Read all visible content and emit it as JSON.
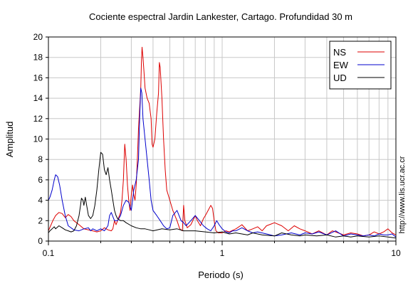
{
  "chart_data": {
    "type": "line",
    "title": "Cociente espectral Jardin Lankester, Cartago. Profundidad 30 m",
    "xlabel": "Periodo (s)",
    "ylabel": "Amplitud",
    "xscale": "log",
    "xlim": [
      0.1,
      10
    ],
    "ylim": [
      0,
      20
    ],
    "xticks": [
      {
        "value": 0.1,
        "label": "0.1"
      },
      {
        "value": 1,
        "label": "1"
      },
      {
        "value": 10,
        "label": "10"
      }
    ],
    "yticks": [
      {
        "value": 0,
        "label": "0"
      },
      {
        "value": 2,
        "label": "2"
      },
      {
        "value": 4,
        "label": "4"
      },
      {
        "value": 6,
        "label": "6"
      },
      {
        "value": 8,
        "label": "8"
      },
      {
        "value": 10,
        "label": "10"
      },
      {
        "value": 12,
        "label": "12"
      },
      {
        "value": 14,
        "label": "14"
      },
      {
        "value": 16,
        "label": "16"
      },
      {
        "value": 18,
        "label": "18"
      },
      {
        "value": 20,
        "label": "20"
      }
    ],
    "grid": true,
    "legend_position": "top-right",
    "watermark": "http://www.lis.ucr.ac.cr",
    "series": [
      {
        "name": "NS",
        "color": "#dd0000",
        "points": [
          [
            0.1,
            1.0
          ],
          [
            0.103,
            1.5
          ],
          [
            0.106,
            2.0
          ],
          [
            0.11,
            2.5
          ],
          [
            0.115,
            2.8
          ],
          [
            0.12,
            2.7
          ],
          [
            0.125,
            2.3
          ],
          [
            0.13,
            2.6
          ],
          [
            0.135,
            2.4
          ],
          [
            0.14,
            2.0
          ],
          [
            0.15,
            1.6
          ],
          [
            0.16,
            1.2
          ],
          [
            0.17,
            1.1
          ],
          [
            0.18,
            1.0
          ],
          [
            0.19,
            0.9
          ],
          [
            0.2,
            1.0
          ],
          [
            0.21,
            1.3
          ],
          [
            0.22,
            1.1
          ],
          [
            0.23,
            1.0
          ],
          [
            0.235,
            1.2
          ],
          [
            0.24,
            2.0
          ],
          [
            0.245,
            1.6
          ],
          [
            0.25,
            2.0
          ],
          [
            0.26,
            2.8
          ],
          [
            0.265,
            4.0
          ],
          [
            0.27,
            6.0
          ],
          [
            0.275,
            9.5
          ],
          [
            0.28,
            8.0
          ],
          [
            0.285,
            5.5
          ],
          [
            0.29,
            4.0
          ],
          [
            0.295,
            3.0
          ],
          [
            0.3,
            4.5
          ],
          [
            0.305,
            5.5
          ],
          [
            0.31,
            4.5
          ],
          [
            0.315,
            4.0
          ],
          [
            0.32,
            5.5
          ],
          [
            0.325,
            8.0
          ],
          [
            0.33,
            11.0
          ],
          [
            0.335,
            13.0
          ],
          [
            0.34,
            15.0
          ],
          [
            0.343,
            17.5
          ],
          [
            0.346,
            19.0
          ],
          [
            0.35,
            18.0
          ],
          [
            0.355,
            16.5
          ],
          [
            0.36,
            15.0
          ],
          [
            0.37,
            14.0
          ],
          [
            0.38,
            13.5
          ],
          [
            0.39,
            12.0
          ],
          [
            0.395,
            9.5
          ],
          [
            0.4,
            9.2
          ],
          [
            0.41,
            10.0
          ],
          [
            0.42,
            12.5
          ],
          [
            0.43,
            14.5
          ],
          [
            0.435,
            17.5
          ],
          [
            0.44,
            17.0
          ],
          [
            0.45,
            14.0
          ],
          [
            0.46,
            10.0
          ],
          [
            0.47,
            7.0
          ],
          [
            0.48,
            5.0
          ],
          [
            0.5,
            4.0
          ],
          [
            0.52,
            3.0
          ],
          [
            0.55,
            2.0
          ],
          [
            0.57,
            1.2
          ],
          [
            0.59,
            1.0
          ],
          [
            0.6,
            3.5
          ],
          [
            0.61,
            2.0
          ],
          [
            0.63,
            1.3
          ],
          [
            0.66,
            1.6
          ],
          [
            0.7,
            2.5
          ],
          [
            0.72,
            2.0
          ],
          [
            0.75,
            1.5
          ],
          [
            0.78,
            2.2
          ],
          [
            0.8,
            2.5
          ],
          [
            0.83,
            3.0
          ],
          [
            0.86,
            3.5
          ],
          [
            0.88,
            3.2
          ],
          [
            0.9,
            2.0
          ],
          [
            0.92,
            1.0
          ],
          [
            0.95,
            0.8
          ],
          [
            1.0,
            0.8
          ],
          [
            1.05,
            1.0
          ],
          [
            1.1,
            0.9
          ],
          [
            1.2,
            1.2
          ],
          [
            1.3,
            1.6
          ],
          [
            1.4,
            1.0
          ],
          [
            1.5,
            1.2
          ],
          [
            1.6,
            1.4
          ],
          [
            1.7,
            1.0
          ],
          [
            1.8,
            1.5
          ],
          [
            2.0,
            1.8
          ],
          [
            2.2,
            1.5
          ],
          [
            2.4,
            1.0
          ],
          [
            2.6,
            1.5
          ],
          [
            2.8,
            1.2
          ],
          [
            3.0,
            1.0
          ],
          [
            3.3,
            0.7
          ],
          [
            3.6,
            1.0
          ],
          [
            4.0,
            0.6
          ],
          [
            4.3,
            1.0
          ],
          [
            4.5,
            0.9
          ],
          [
            5.0,
            0.6
          ],
          [
            5.5,
            0.8
          ],
          [
            6.0,
            0.7
          ],
          [
            6.5,
            0.5
          ],
          [
            7.0,
            0.6
          ],
          [
            7.5,
            0.9
          ],
          [
            8.0,
            0.7
          ],
          [
            8.5,
            0.9
          ],
          [
            9.0,
            1.2
          ],
          [
            9.5,
            0.8
          ],
          [
            10.0,
            0.6
          ]
        ]
      },
      {
        "name": "EW",
        "color": "#0000cc",
        "points": [
          [
            0.1,
            4.0
          ],
          [
            0.102,
            4.3
          ],
          [
            0.105,
            5.0
          ],
          [
            0.108,
            6.0
          ],
          [
            0.11,
            6.5
          ],
          [
            0.113,
            6.3
          ],
          [
            0.116,
            5.5
          ],
          [
            0.12,
            4.0
          ],
          [
            0.125,
            2.5
          ],
          [
            0.13,
            1.5
          ],
          [
            0.14,
            1.1
          ],
          [
            0.15,
            1.0
          ],
          [
            0.16,
            1.2
          ],
          [
            0.17,
            1.3
          ],
          [
            0.175,
            1.0
          ],
          [
            0.18,
            1.2
          ],
          [
            0.19,
            1.0
          ],
          [
            0.2,
            1.2
          ],
          [
            0.21,
            1.0
          ],
          [
            0.22,
            1.5
          ],
          [
            0.225,
            2.5
          ],
          [
            0.23,
            2.8
          ],
          [
            0.235,
            2.4
          ],
          [
            0.24,
            2.0
          ],
          [
            0.25,
            2.0
          ],
          [
            0.26,
            2.5
          ],
          [
            0.27,
            3.5
          ],
          [
            0.28,
            4.0
          ],
          [
            0.29,
            3.8
          ],
          [
            0.3,
            3.0
          ],
          [
            0.305,
            4.0
          ],
          [
            0.31,
            5.0
          ],
          [
            0.32,
            6.0
          ],
          [
            0.33,
            8.0
          ],
          [
            0.335,
            12.0
          ],
          [
            0.34,
            15.0
          ],
          [
            0.345,
            14.5
          ],
          [
            0.35,
            12.0
          ],
          [
            0.36,
            10.0
          ],
          [
            0.37,
            8.0
          ],
          [
            0.38,
            6.0
          ],
          [
            0.39,
            4.0
          ],
          [
            0.4,
            3.0
          ],
          [
            0.42,
            2.5
          ],
          [
            0.44,
            2.0
          ],
          [
            0.46,
            1.5
          ],
          [
            0.48,
            1.2
          ],
          [
            0.5,
            1.3
          ],
          [
            0.52,
            2.5
          ],
          [
            0.55,
            3.0
          ],
          [
            0.58,
            2.0
          ],
          [
            0.6,
            1.8
          ],
          [
            0.62,
            1.5
          ],
          [
            0.66,
            2.0
          ],
          [
            0.7,
            2.5
          ],
          [
            0.74,
            2.0
          ],
          [
            0.78,
            1.5
          ],
          [
            0.82,
            1.2
          ],
          [
            0.86,
            1.0
          ],
          [
            0.9,
            1.5
          ],
          [
            0.93,
            2.0
          ],
          [
            0.96,
            1.6
          ],
          [
            1.0,
            1.2
          ],
          [
            1.05,
            0.9
          ],
          [
            1.1,
            0.8
          ],
          [
            1.15,
            1.0
          ],
          [
            1.2,
            1.0
          ],
          [
            1.3,
            1.3
          ],
          [
            1.4,
            1.0
          ],
          [
            1.5,
            0.8
          ],
          [
            1.6,
            0.9
          ],
          [
            1.8,
            0.7
          ],
          [
            2.0,
            0.5
          ],
          [
            2.2,
            0.6
          ],
          [
            2.5,
            0.8
          ],
          [
            2.8,
            0.6
          ],
          [
            3.0,
            0.8
          ],
          [
            3.3,
            0.7
          ],
          [
            3.6,
            0.9
          ],
          [
            4.0,
            0.6
          ],
          [
            4.5,
            1.0
          ],
          [
            5.0,
            0.5
          ],
          [
            5.5,
            0.7
          ],
          [
            6.0,
            0.6
          ],
          [
            6.5,
            0.5
          ],
          [
            7.0,
            0.6
          ],
          [
            7.5,
            0.5
          ],
          [
            8.0,
            0.7
          ],
          [
            8.5,
            0.6
          ],
          [
            9.0,
            0.6
          ],
          [
            9.5,
            0.7
          ],
          [
            10.0,
            0.4
          ]
        ]
      },
      {
        "name": "UD",
        "color": "#000000",
        "points": [
          [
            0.1,
            0.8
          ],
          [
            0.102,
            1.0
          ],
          [
            0.105,
            1.2
          ],
          [
            0.108,
            1.4
          ],
          [
            0.11,
            1.2
          ],
          [
            0.115,
            1.5
          ],
          [
            0.12,
            1.3
          ],
          [
            0.125,
            1.1
          ],
          [
            0.13,
            1.0
          ],
          [
            0.135,
            0.9
          ],
          [
            0.14,
            1.0
          ],
          [
            0.145,
            1.5
          ],
          [
            0.15,
            2.5
          ],
          [
            0.153,
            3.5
          ],
          [
            0.155,
            4.2
          ],
          [
            0.158,
            4.0
          ],
          [
            0.16,
            3.5
          ],
          [
            0.163,
            4.3
          ],
          [
            0.166,
            3.5
          ],
          [
            0.17,
            2.5
          ],
          [
            0.175,
            2.2
          ],
          [
            0.18,
            2.5
          ],
          [
            0.185,
            3.5
          ],
          [
            0.19,
            5.0
          ],
          [
            0.195,
            7.0
          ],
          [
            0.2,
            8.7
          ],
          [
            0.205,
            8.5
          ],
          [
            0.21,
            7.0
          ],
          [
            0.215,
            6.5
          ],
          [
            0.22,
            7.2
          ],
          [
            0.225,
            6.0
          ],
          [
            0.23,
            5.0
          ],
          [
            0.235,
            4.0
          ],
          [
            0.24,
            3.0
          ],
          [
            0.245,
            2.5
          ],
          [
            0.25,
            2.2
          ],
          [
            0.26,
            2.0
          ],
          [
            0.27,
            2.0
          ],
          [
            0.28,
            1.8
          ],
          [
            0.3,
            1.5
          ],
          [
            0.32,
            1.3
          ],
          [
            0.34,
            1.2
          ],
          [
            0.36,
            1.2
          ],
          [
            0.38,
            1.1
          ],
          [
            0.4,
            1.0
          ],
          [
            0.45,
            1.2
          ],
          [
            0.5,
            1.1
          ],
          [
            0.55,
            1.2
          ],
          [
            0.6,
            1.0
          ],
          [
            0.7,
            1.0
          ],
          [
            0.8,
            0.9
          ],
          [
            0.9,
            0.8
          ],
          [
            1.0,
            0.9
          ],
          [
            1.1,
            0.7
          ],
          [
            1.2,
            0.8
          ],
          [
            1.3,
            0.7
          ],
          [
            1.4,
            0.6
          ],
          [
            1.5,
            0.8
          ],
          [
            1.7,
            0.6
          ],
          [
            2.0,
            0.5
          ],
          [
            2.2,
            0.8
          ],
          [
            2.5,
            0.6
          ],
          [
            2.8,
            0.5
          ],
          [
            3.0,
            0.6
          ],
          [
            3.5,
            0.5
          ],
          [
            4.0,
            0.6
          ],
          [
            4.5,
            0.4
          ],
          [
            5.0,
            0.5
          ],
          [
            5.5,
            0.4
          ],
          [
            6.0,
            0.5
          ],
          [
            7.0,
            0.4
          ],
          [
            8.0,
            0.5
          ],
          [
            9.0,
            0.4
          ],
          [
            10.0,
            0.3
          ]
        ]
      }
    ]
  }
}
